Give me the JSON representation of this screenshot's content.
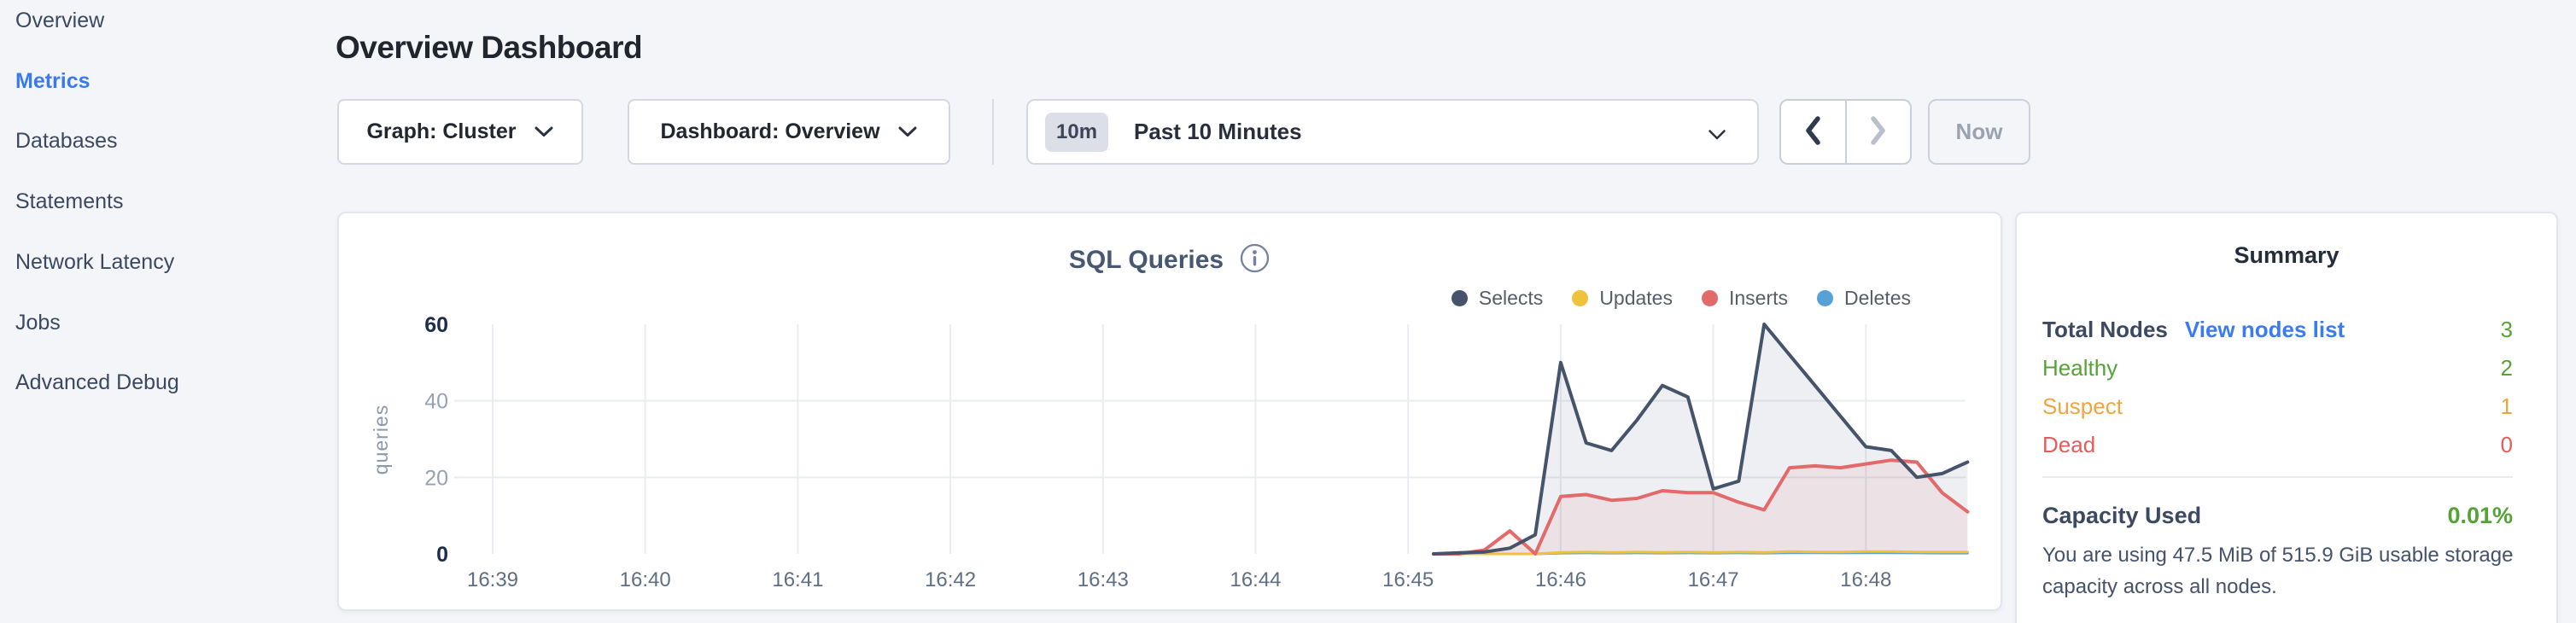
{
  "sidebar": {
    "items": [
      {
        "label": "Overview",
        "active": false
      },
      {
        "label": "Metrics",
        "active": true
      },
      {
        "label": "Databases",
        "active": false
      },
      {
        "label": "Statements",
        "active": false
      },
      {
        "label": "Network Latency",
        "active": false
      },
      {
        "label": "Jobs",
        "active": false
      },
      {
        "label": "Advanced Debug",
        "active": false
      }
    ],
    "active_color": "#3a7af0",
    "item_color": "#3a4860"
  },
  "header": {
    "title": "Overview Dashboard"
  },
  "toolbar": {
    "graph_dropdown": {
      "label": "Graph: Cluster",
      "icon": "chevron-down"
    },
    "dashboard_dropdown": {
      "label": "Dashboard: Overview",
      "icon": "chevron-down"
    },
    "time_selector": {
      "badge": "10m",
      "label": "Past 10 Minutes",
      "icon": "chevron-down"
    },
    "prev_button": {
      "icon": "chevron-left",
      "enabled": true
    },
    "next_button": {
      "icon": "chevron-right",
      "enabled": false
    },
    "now_button": {
      "label": "Now",
      "enabled": false
    }
  },
  "chart_data": {
    "type": "area",
    "title": "SQL Queries",
    "info_icon": "info",
    "xlabel": "",
    "ylabel": "queries",
    "ylim": [
      0,
      60
    ],
    "yticks": [
      0,
      20,
      40,
      60
    ],
    "xticks": [
      "16:39",
      "16:40",
      "16:41",
      "16:42",
      "16:43",
      "16:44",
      "16:45",
      "16:46",
      "16:47",
      "16:48"
    ],
    "grid": true,
    "legend_position": "top-right",
    "x": [
      "16:45:10",
      "16:45:20",
      "16:45:30",
      "16:45:40",
      "16:45:50",
      "16:46:00",
      "16:46:10",
      "16:46:20",
      "16:46:30",
      "16:46:40",
      "16:46:50",
      "16:47:00",
      "16:47:10",
      "16:47:20",
      "16:47:30",
      "16:47:40",
      "16:47:50",
      "16:48:00",
      "16:48:10",
      "16:48:20",
      "16:48:30",
      "16:48:40"
    ],
    "series": [
      {
        "name": "Selects",
        "color": "#45536b",
        "fill": "rgba(69,83,107,0.09)",
        "values": [
          0,
          0.3,
          0.5,
          1.5,
          5,
          50,
          29,
          27,
          35,
          44,
          41,
          17,
          19,
          60,
          52,
          44,
          36,
          28,
          27,
          20,
          21,
          24
        ]
      },
      {
        "name": "Updates",
        "color": "#f0c13c",
        "fill": "rgba(240,193,60,0.10)",
        "values": [
          0,
          0,
          0,
          0,
          0,
          0.4,
          0.5,
          0.4,
          0.5,
          0.4,
          0.5,
          0.4,
          0.5,
          0.4,
          0.6,
          0.5,
          0.5,
          0.6,
          0.6,
          0.5,
          0.5,
          0.5
        ]
      },
      {
        "name": "Inserts",
        "color": "#e26a6a",
        "fill": "rgba(226,106,106,0.10)",
        "values": [
          0,
          0,
          1,
          6,
          0,
          15,
          15.5,
          14,
          14.5,
          16.5,
          16,
          16,
          13.5,
          11.5,
          22.5,
          23,
          22.5,
          23.5,
          24.5,
          24,
          16,
          11
        ]
      },
      {
        "name": "Deletes",
        "color": "#57a1d8",
        "fill": "rgba(87,161,216,0.10)",
        "values": [
          0,
          0,
          0,
          0,
          0,
          0.2,
          0.25,
          0.2,
          0.25,
          0.2,
          0.25,
          0.2,
          0.25,
          0.2,
          0.3,
          0.3,
          0.25,
          0.3,
          0.3,
          0.25,
          0.2,
          0.2
        ]
      }
    ],
    "axis_colors": {
      "edge_tick": "#1c2e4a",
      "mid_tick": "#96a1b2",
      "x_tick": "#5e6e85",
      "ylabel": "#8c99ab",
      "grid": "#e9ecf1"
    }
  },
  "summary": {
    "title": "Summary",
    "total_nodes": {
      "label": "Total Nodes",
      "link": "View nodes list",
      "link_color": "#3b7bf0",
      "value": "3",
      "value_color": "#55a336"
    },
    "rows": [
      {
        "label": "Healthy",
        "value": "2",
        "color": "#55a336"
      },
      {
        "label": "Suspect",
        "value": "1",
        "color": "#f0a33f"
      },
      {
        "label": "Dead",
        "value": "0",
        "color": "#e25c5c"
      }
    ],
    "capacity": {
      "label": "Capacity Used",
      "value": "0.01%",
      "value_color": "#55a336",
      "description": "You are using 47.5 MiB of 515.9 GiB usable storage capacity across all nodes."
    }
  }
}
